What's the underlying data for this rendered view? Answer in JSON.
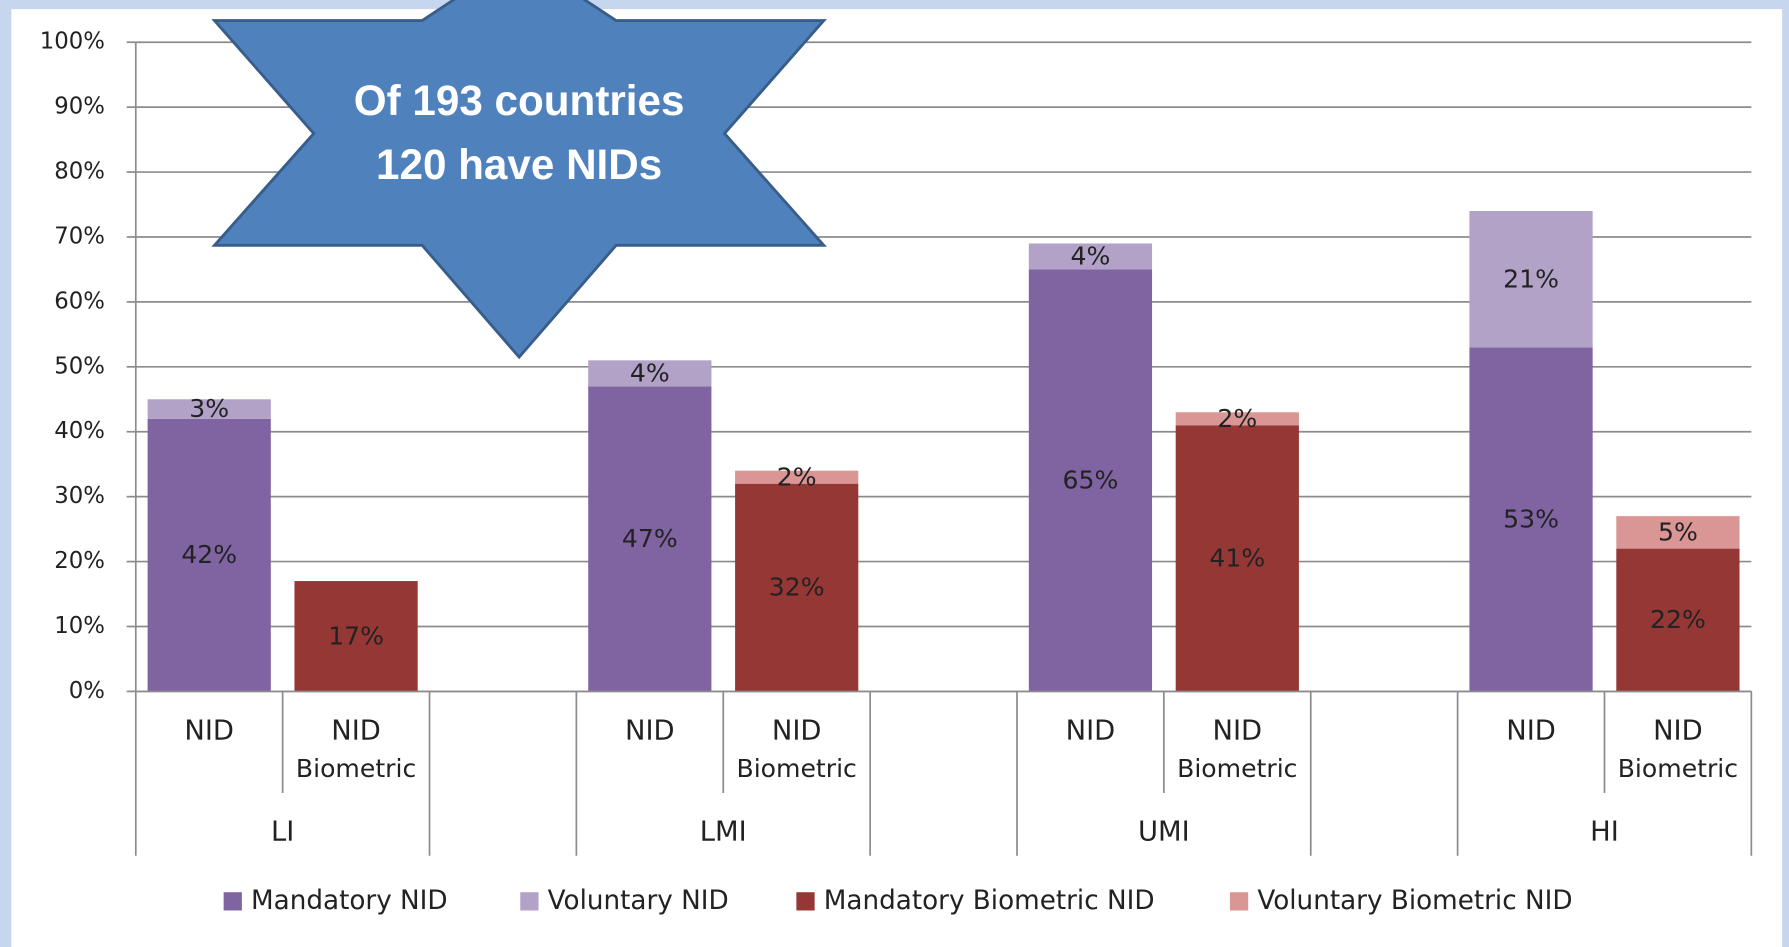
{
  "chart_data": {
    "type": "bar",
    "stacked": true,
    "annotation": [
      "Of 193 countries",
      "120 have NIDs"
    ],
    "categories": [
      "NID",
      "NID Biometric",
      null,
      "NID",
      "NID Biometric",
      null,
      "NID",
      "NID Biometric",
      null,
      "NID",
      "NID Biometric"
    ],
    "groups": [
      "LI",
      "LMI",
      "UMI",
      "HI"
    ],
    "series": [
      {
        "name": "Mandatory NID",
        "color": "#8064a2",
        "values": [
          42,
          null,
          null,
          47,
          null,
          null,
          65,
          null,
          null,
          53,
          null
        ],
        "value_labels": [
          "42%",
          null,
          null,
          "47%",
          null,
          null,
          "65%",
          null,
          null,
          "53%",
          null
        ]
      },
      {
        "name": "Voluntary NID",
        "color": "#b3a2c7",
        "values": [
          3,
          null,
          null,
          4,
          null,
          null,
          4,
          null,
          null,
          21,
          null
        ],
        "value_labels": [
          "3%",
          null,
          null,
          "4%",
          null,
          null,
          "4%",
          null,
          null,
          "21%",
          null
        ]
      },
      {
        "name": "Mandatory Biometric NID",
        "color": "#953735",
        "values": [
          null,
          17,
          null,
          null,
          32,
          null,
          null,
          41,
          null,
          null,
          22
        ],
        "value_labels": [
          null,
          "17%",
          null,
          null,
          "32%",
          null,
          null,
          "41%",
          null,
          null,
          "22%"
        ]
      },
      {
        "name": "Voluntary Biometric NID",
        "color": "#d99694",
        "values": [
          null,
          null,
          null,
          null,
          2,
          null,
          null,
          2,
          null,
          null,
          5
        ],
        "value_labels": [
          null,
          null,
          null,
          null,
          "2%",
          null,
          null,
          "2%",
          null,
          null,
          "5%"
        ]
      }
    ],
    "ylim": [
      0,
      100
    ],
    "yticks": [
      {
        "value": 0,
        "label": "0%"
      },
      {
        "value": 10,
        "label": "10%"
      },
      {
        "value": 20,
        "label": "20%"
      },
      {
        "value": 30,
        "label": "30%"
      },
      {
        "value": 40,
        "label": "40%"
      },
      {
        "value": 50,
        "label": "50%"
      },
      {
        "value": 60,
        "label": "60%"
      },
      {
        "value": 70,
        "label": "70%"
      },
      {
        "value": 80,
        "label": "80%"
      },
      {
        "value": 90,
        "label": "90%"
      },
      {
        "value": 100,
        "label": "100%"
      }
    ],
    "grid": true,
    "legend": "bottom"
  }
}
